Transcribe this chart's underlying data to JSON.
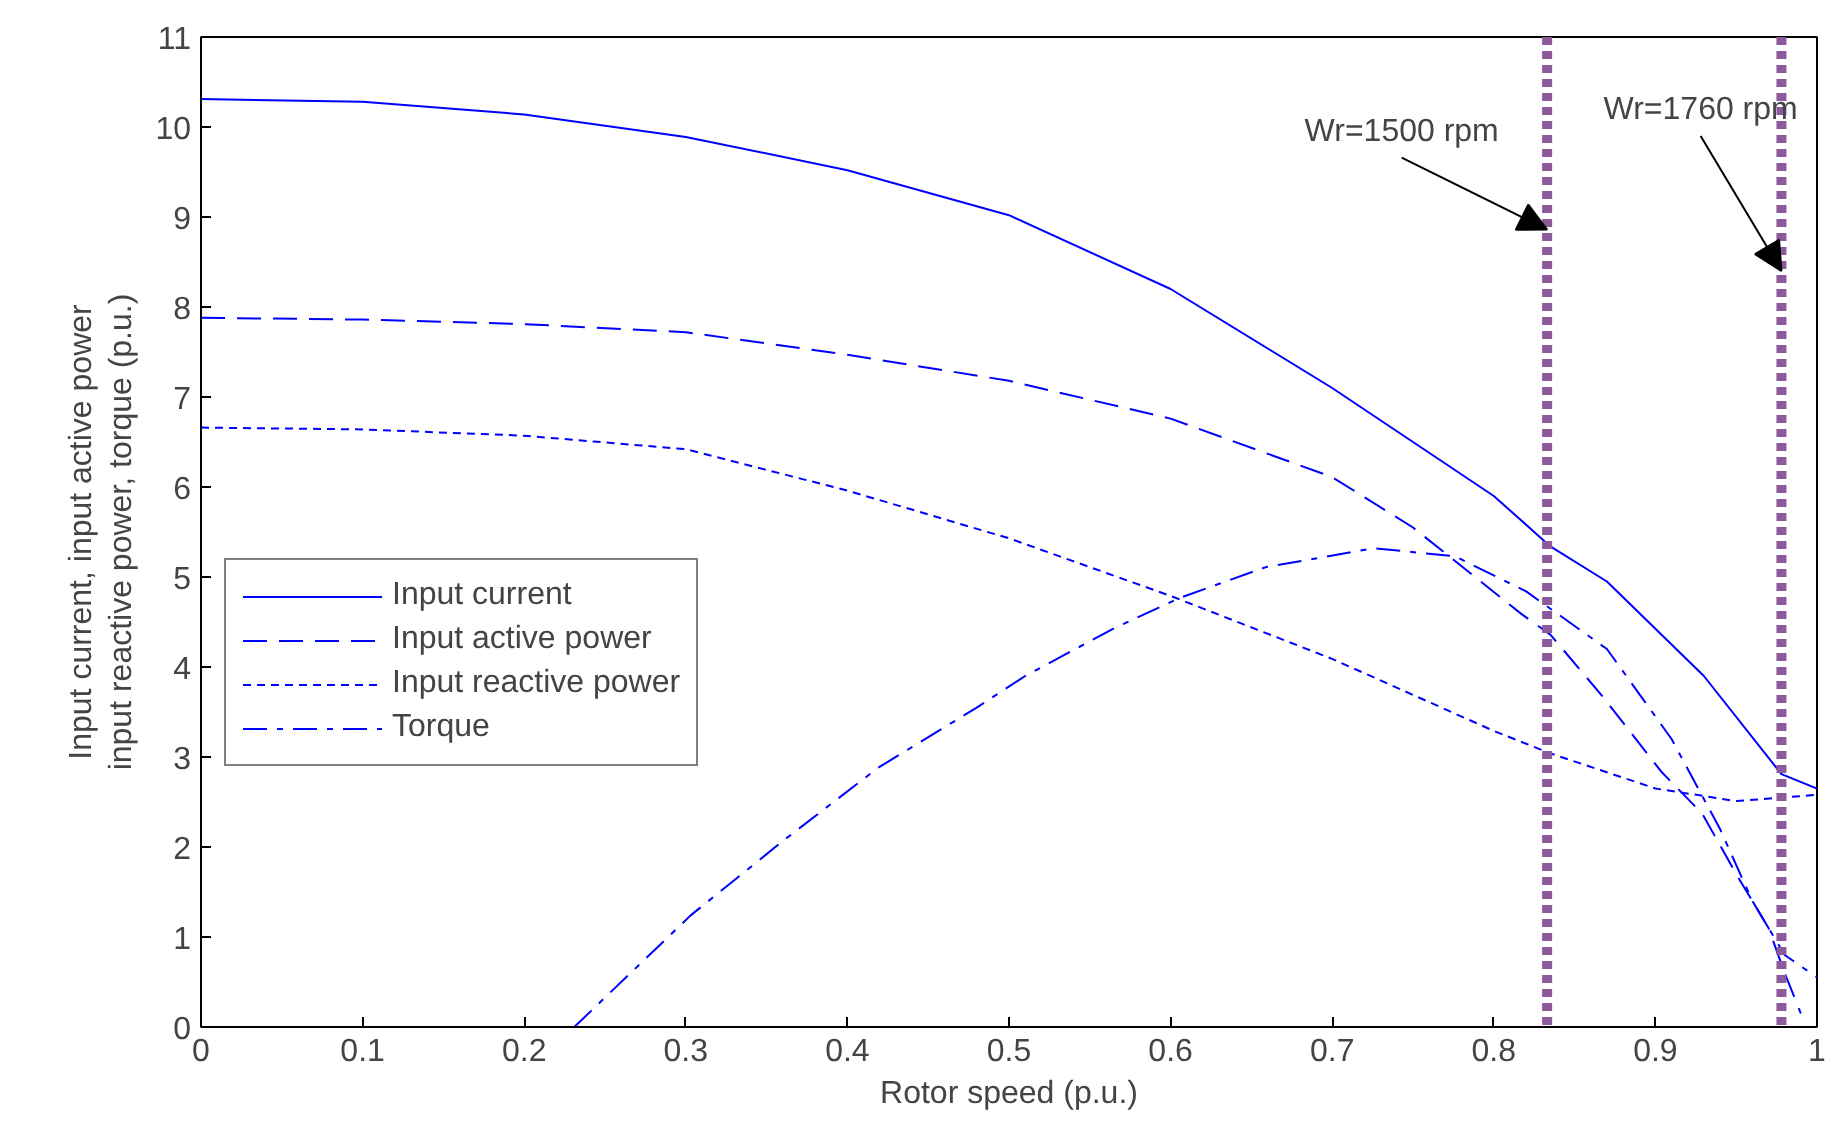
{
  "chart_data": {
    "type": "line",
    "xlabel": "Rotor speed (p.u.)",
    "ylabel": "Input current, input active power\ninput reactive power, torque (p.u.)",
    "xlim": [
      0,
      1
    ],
    "ylim": [
      0,
      11
    ],
    "xticks": [
      0,
      0.1,
      0.2,
      0.3,
      0.4,
      0.5,
      0.6,
      0.7,
      0.8,
      0.9,
      1
    ],
    "yticks": [
      0,
      1,
      2,
      3,
      4,
      5,
      6,
      7,
      8,
      9,
      10,
      11
    ],
    "grid": false,
    "legend": "left",
    "series": [
      {
        "name": "Input current",
        "color": "#0000ff",
        "line_style": "solid",
        "x": [
          0,
          0.1,
          0.2,
          0.3,
          0.4,
          0.45,
          0.5,
          0.6,
          0.7,
          0.75,
          0.8,
          0.835,
          0.87,
          0.93,
          0.978,
          1
        ],
        "values": [
          10.31,
          10.28,
          10.14,
          9.89,
          9.52,
          9.27,
          9.02,
          8.2,
          7.1,
          6.5,
          5.9,
          5.34,
          4.95,
          3.9,
          2.81,
          2.65
        ]
      },
      {
        "name": "Input active power",
        "color": "#0000ff",
        "line_style": "dashed",
        "x": [
          0,
          0.1,
          0.2,
          0.3,
          0.4,
          0.5,
          0.6,
          0.7,
          0.75,
          0.817,
          0.835,
          0.867,
          0.904,
          0.929,
          0.95,
          0.97,
          0.98,
          0.99
        ],
        "values": [
          7.88,
          7.86,
          7.81,
          7.72,
          7.47,
          7.18,
          6.76,
          6.11,
          5.55,
          4.59,
          4.36,
          3.68,
          2.83,
          2.37,
          1.7,
          1.1,
          0.6,
          0.15
        ]
      },
      {
        "name": "Input reactive power",
        "color": "#0000ff",
        "line_style": "dotted",
        "x": [
          0,
          0.1,
          0.2,
          0.3,
          0.4,
          0.5,
          0.6,
          0.7,
          0.8,
          0.835,
          0.9,
          0.95,
          1
        ],
        "values": [
          6.66,
          6.64,
          6.57,
          6.42,
          5.96,
          5.43,
          4.79,
          4.09,
          3.29,
          3.04,
          2.65,
          2.51,
          2.58
        ]
      },
      {
        "name": "Torque",
        "color": "#0000ff",
        "line_style": "dashdot",
        "x": [
          0.231,
          0.303,
          0.361,
          0.419,
          0.481,
          0.51,
          0.565,
          0.606,
          0.659,
          0.726,
          0.776,
          0.82,
          0.87,
          0.91,
          0.94,
          0.96,
          0.98,
          1
        ],
        "values": [
          0,
          1.24,
          2.08,
          2.88,
          3.56,
          3.9,
          4.43,
          4.77,
          5.11,
          5.32,
          5.23,
          4.84,
          4.2,
          3.2,
          2.2,
          1.4,
          0.8,
          0.55
        ]
      }
    ],
    "ref_lines": [
      {
        "axis": "x",
        "value": 0.833,
        "label": null,
        "color": "#8a5a9a",
        "line_style": "dotted"
      },
      {
        "axis": "x",
        "value": 0.978,
        "label": null,
        "color": "#8a5a9a",
        "line_style": "dotted"
      }
    ],
    "annotations": [
      {
        "text": "Wr=1500 rpm",
        "x": 0.833,
        "y": 8.86
      },
      {
        "text": "Wr=1760 rpm",
        "x": 0.978,
        "y": 8.4
      }
    ]
  }
}
